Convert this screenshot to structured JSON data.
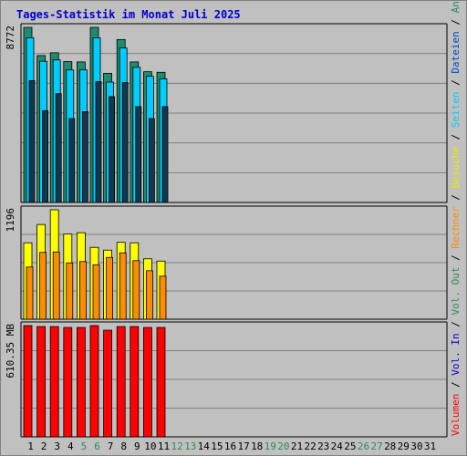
{
  "chart_data": {
    "type": "bar",
    "title": "Tages-Statistik im Monat Juli 2025",
    "background_color": "#c0c0c0",
    "grid": true,
    "categories": [
      "1",
      "2",
      "3",
      "4",
      "5",
      "6",
      "7",
      "8",
      "9",
      "10",
      "11",
      "12",
      "13",
      "14",
      "15",
      "16",
      "17",
      "18",
      "19",
      "20",
      "21",
      "22",
      "23",
      "24",
      "25",
      "26",
      "27",
      "28",
      "29",
      "30",
      "31"
    ],
    "weekend_days": [
      "5",
      "6",
      "12",
      "13",
      "19",
      "20",
      "26",
      "27"
    ],
    "day_label_colors": {
      "weekday": "#000000",
      "weekend": "#2e8b57"
    },
    "panels": [
      {
        "id": "requests",
        "scale_label": "8772",
        "ymax": 8772,
        "series": [
          {
            "name": "Anfragen",
            "color": "#1e8c6e",
            "values": [
              8772,
              7360,
              7500,
              7060,
              7040,
              8772,
              6470,
              8160,
              7040,
              6550,
              6520,
              null,
              null,
              null,
              null,
              null,
              null,
              null,
              null,
              null,
              null,
              null,
              null,
              null,
              null,
              null,
              null,
              null,
              null,
              null,
              null
            ]
          },
          {
            "name": "Dateien",
            "color": "#00ccff",
            "values": [
              8250,
              7070,
              7140,
              6640,
              6640,
              8250,
              6030,
              7740,
              6770,
              6320,
              6190,
              null,
              null,
              null,
              null,
              null,
              null,
              null,
              null,
              null,
              null,
              null,
              null,
              null,
              null,
              null,
              null,
              null,
              null,
              null,
              null
            ]
          },
          {
            "name": "Seiten",
            "color": "#0c3a52",
            "values": [
              6100,
              4600,
              5450,
              4200,
              4550,
              6050,
              5300,
              6000,
              4800,
              4200,
              4800,
              null,
              null,
              null,
              null,
              null,
              null,
              null,
              null,
              null,
              null,
              null,
              null,
              null,
              null,
              null,
              null,
              null,
              null,
              null,
              null
            ]
          }
        ]
      },
      {
        "id": "visits",
        "scale_label": "1196",
        "ymax": 1196,
        "series": [
          {
            "name": "Besuche",
            "color": "#ffff00",
            "values": [
              835,
              1035,
              1196,
              930,
              945,
              785,
              755,
              840,
              835,
              660,
              635,
              null,
              null,
              null,
              null,
              null,
              null,
              null,
              null,
              null,
              null,
              null,
              null,
              null,
              null,
              null,
              null,
              null,
              null,
              null,
              null
            ]
          },
          {
            "name": "Rechner",
            "color": "#ff8c00",
            "values": [
              570,
              730,
              735,
              615,
              630,
              595,
              675,
              725,
              640,
              530,
              470,
              null,
              null,
              null,
              null,
              null,
              null,
              null,
              null,
              null,
              null,
              null,
              null,
              null,
              null,
              null,
              null,
              null,
              null,
              null,
              null
            ]
          }
        ]
      },
      {
        "id": "volume",
        "scale_label": "610.35 MB",
        "ymax": 610.35,
        "series": [
          {
            "name": "Volumen",
            "color": "#ff0000",
            "values": [
              610.35,
              605,
              605,
              600,
              600,
              610.35,
              585,
              605,
              605,
              600,
              600,
              null,
              null,
              null,
              null,
              null,
              null,
              null,
              null,
              null,
              null,
              null,
              null,
              null,
              null,
              null,
              null,
              null,
              null,
              null,
              null
            ]
          }
        ]
      }
    ],
    "legend": {
      "placement": "right, vertical",
      "separator": "/",
      "items": [
        {
          "name": "Volumen",
          "color": "#ff0000"
        },
        {
          "name": "Vol. In",
          "color": "#0000cc"
        },
        {
          "name": "Vol. Out",
          "color": "#2e8b57"
        },
        {
          "name": "Rechner",
          "color": "#ff8c00"
        },
        {
          "name": "Besuche",
          "color": "#e8e800"
        },
        {
          "name": "Seiten",
          "color": "#00ccff"
        },
        {
          "name": "Dateien",
          "color": "#0044cc"
        },
        {
          "name": "Anfragen",
          "color": "#1e8c6e"
        }
      ]
    },
    "colors": {
      "title": "#0000cc",
      "grid": "#808080",
      "separator": "#000000"
    }
  }
}
